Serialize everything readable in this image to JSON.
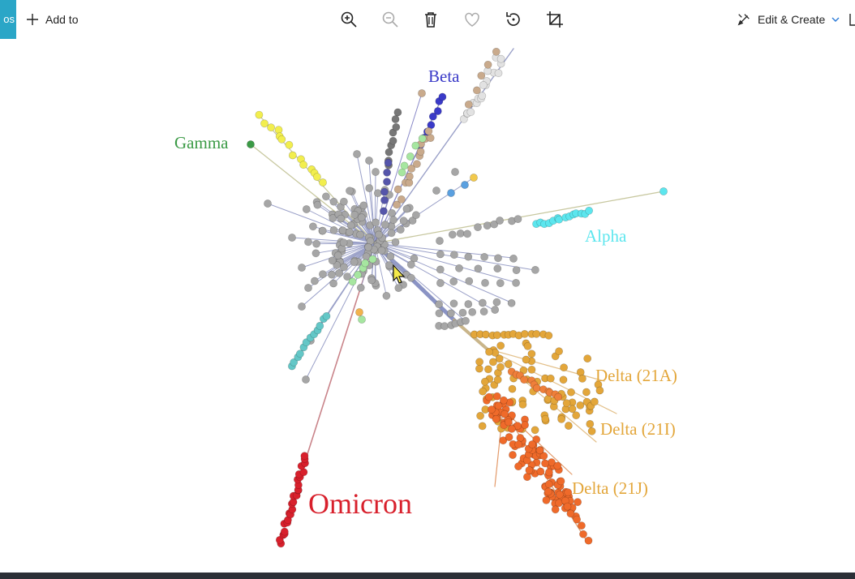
{
  "toolbar": {
    "app_tab_fragment": "os",
    "add_to_label": "Add to",
    "edit_create_label": "Edit & Create",
    "icons": [
      "zoom-in-icon",
      "zoom-out-icon",
      "delete-icon",
      "favorite-icon",
      "rotate-icon",
      "crop-icon",
      "edit-create-icon",
      "chevron-down-icon"
    ]
  },
  "figure": {
    "labels": {
      "beta": "Beta",
      "gamma": "Gamma",
      "alpha": "Alpha",
      "delta_21a": "Delta (21A)",
      "delta_21i": "Delta (21I)",
      "delta_21j": "Delta (21J)",
      "omicron": "Omicron"
    },
    "colors": {
      "beta": "#3a3ac8",
      "gamma": "#3a9a45",
      "alpha": "#5ce6ee",
      "delta": "#e3a63a",
      "delta_21j": "#ef6a2a",
      "omicron": "#d8202c",
      "grey": "#a6a6a6",
      "yellow": "#f2ee4e",
      "tan": "#c9aa8c",
      "teal": "#63c7c7",
      "branch": "#8a93c4"
    }
  }
}
